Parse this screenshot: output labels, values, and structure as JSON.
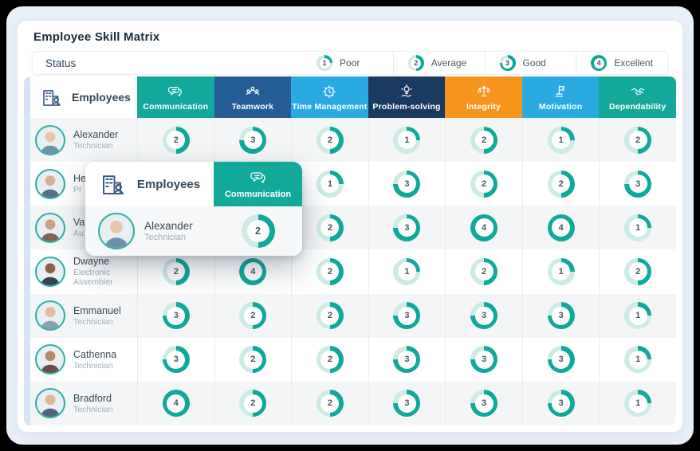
{
  "page": {
    "title": "Employee Skill Matrix"
  },
  "status_bar": {
    "label": "Status",
    "legend": [
      {
        "value": 1,
        "label": "Poor"
      },
      {
        "value": 2,
        "label": "Average"
      },
      {
        "value": 3,
        "label": "Good"
      },
      {
        "value": 4,
        "label": "Excellent"
      }
    ]
  },
  "colors": {
    "ring_fill": "#0ea99a",
    "ring_track": "#cdeae5",
    "accent_strip": "#d5e3f2",
    "panel_bg": "#e9eff6"
  },
  "table": {
    "employees_header": "Employees",
    "columns": [
      {
        "label": "Communication",
        "icon": "communication-icon",
        "color": "#12a99b"
      },
      {
        "label": "Teamwork",
        "icon": "teamwork-icon",
        "color": "#275d96"
      },
      {
        "label": "Time Management",
        "icon": "time-management-icon",
        "color": "#29abe2"
      },
      {
        "label": "Problem-solving",
        "icon": "problem-solving-icon",
        "color": "#1b3a5f"
      },
      {
        "label": "Integrity",
        "icon": "integrity-icon",
        "color": "#f7941e"
      },
      {
        "label": "Motivation",
        "icon": "motivation-icon",
        "color": "#29abe2"
      },
      {
        "label": "Dependability",
        "icon": "dependability-icon",
        "color": "#14a89a"
      }
    ],
    "rows": [
      {
        "name": "Alexander",
        "role": "Technician",
        "values": [
          2,
          3,
          2,
          1,
          2,
          1,
          2
        ]
      },
      {
        "name": "He",
        "role": "Pr",
        "values": [
          null,
          null,
          1,
          3,
          2,
          2,
          3
        ],
        "note": "partially hidden by popup"
      },
      {
        "name": "Va",
        "role": "Au",
        "values": [
          null,
          null,
          2,
          3,
          4,
          4,
          1
        ],
        "note": "partially hidden by popup"
      },
      {
        "name": "Dwayne",
        "role": "Electronic Assembler",
        "values": [
          2,
          4,
          2,
          1,
          2,
          1,
          2
        ]
      },
      {
        "name": "Emmanuel",
        "role": "Technician",
        "values": [
          3,
          2,
          2,
          3,
          3,
          3,
          1
        ]
      },
      {
        "name": "Cathenna",
        "role": "Technician",
        "values": [
          3,
          2,
          2,
          3,
          3,
          3,
          1
        ]
      },
      {
        "name": "Bradford",
        "role": "Technician",
        "values": [
          4,
          2,
          2,
          3,
          3,
          3,
          1
        ]
      }
    ]
  },
  "popup": {
    "employees_header": "Employees",
    "column": {
      "label": "Communication",
      "icon": "communication-icon",
      "color": "#12a99b"
    },
    "row": {
      "name": "Alexander",
      "role": "Technician",
      "value": 2
    }
  }
}
